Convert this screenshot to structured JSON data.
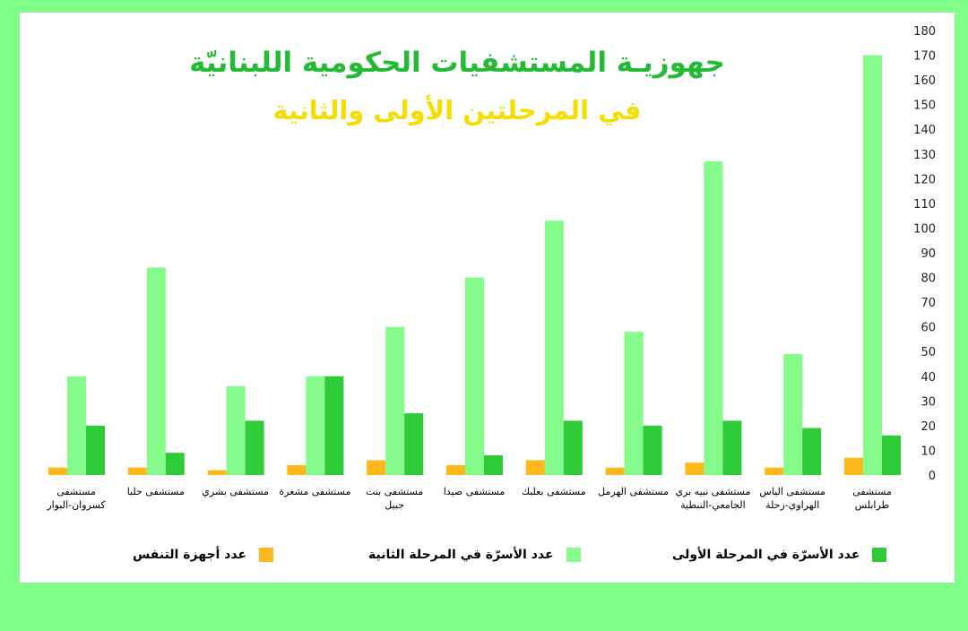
{
  "chart_data": {
    "type": "bar",
    "title": "جهوزيـة المستشفيات الحكومية اللبنانيّة",
    "subtitle": "في المرحلتين الأولى والثانية",
    "title_color": "#22bb33",
    "subtitle_color": "#f5dd00",
    "ylim": [
      0,
      180
    ],
    "yticks": [
      "0",
      "10",
      "20",
      "30",
      "40",
      "50",
      "60",
      "70",
      "80",
      "90",
      "100",
      "110",
      "120",
      "130",
      "140",
      "150",
      "160",
      "170",
      "180"
    ],
    "y_axis_position": "right",
    "categories": [
      [
        "مستشفى",
        "طرابلس"
      ],
      [
        "مستشفى الياس",
        "الهراوي-زحلة"
      ],
      [
        "مستشفى نبيه بري",
        "الجامعي-النبطية"
      ],
      [
        "مستشفى الهرمل"
      ],
      [
        "مستشفى بعلبك"
      ],
      [
        "مستشفى صيدا"
      ],
      [
        "مستشفى بنت",
        "جبيل"
      ],
      [
        "مستشفى مشغرة"
      ],
      [
        "مستشفى بشري"
      ],
      [
        "مستشفى حلبا"
      ],
      [
        "مستشفى",
        "كسروان-البوار"
      ]
    ],
    "category_order": "right-to-left",
    "series": [
      {
        "name": "عدد أجهزة التنفس",
        "color": "#ffb81c",
        "values": [
          7,
          3,
          5,
          3,
          6,
          4,
          6,
          4,
          2,
          3,
          3
        ]
      },
      {
        "name": "عدد الأسرّة في المرحلة الثانية",
        "color": "#84fb8a",
        "values": [
          170,
          49,
          127,
          58,
          103,
          80,
          60,
          40,
          36,
          84,
          40
        ]
      },
      {
        "name": "عدد الأسرّة في المرحلة الأولى",
        "color": "#2dcc38",
        "values": [
          16,
          19,
          22,
          20,
          22,
          8,
          25,
          40,
          22,
          9,
          20
        ]
      }
    ],
    "legend_position": "bottom",
    "grid": false
  }
}
